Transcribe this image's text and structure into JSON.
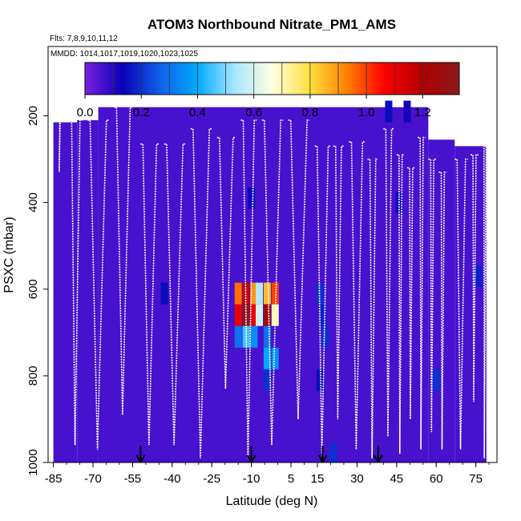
{
  "chart_data": {
    "type": "heatmap",
    "title": "ATOM3 Northbound Nitrate_PM1_AMS",
    "flights_note": "Flts: 7,8,9,10,11,12",
    "dates_note": "MMDD: 1014,1017,1019,1020,1023,1025",
    "xlabel": "Latitude (deg N)",
    "ylabel": "PSXC (mbar)",
    "xlim": [
      -87,
      83
    ],
    "ylim": [
      1000,
      40
    ],
    "x_ticks": [
      "-85",
      "-70",
      "-55",
      "-40",
      "-25",
      "-10",
      "5",
      "15",
      "30",
      "45",
      "60",
      "75"
    ],
    "y_ticks": [
      "200",
      "400",
      "600",
      "800",
      "1000"
    ],
    "colorbar": {
      "range": [
        0,
        1.33
      ],
      "tick_labels": [
        "0.0",
        "0.2",
        "0.4",
        "0.6",
        "0.8",
        "1.0",
        "1.2"
      ],
      "stops": [
        "#7a1fe0",
        "#0a00b8",
        "#1060e8",
        "#00aaff",
        "#a8e6ff",
        "#ffffe0",
        "#ffe040",
        "#ff8000",
        "#ff0000",
        "#b00000",
        "#8b1a1a"
      ]
    },
    "background_value": 0.06,
    "cells": [
      {
        "lat": -15,
        "p": 610,
        "v": 0.95
      },
      {
        "lat": -12,
        "p": 610,
        "v": 1.15
      },
      {
        "lat": -9,
        "p": 610,
        "v": 0.9
      },
      {
        "lat": -7,
        "p": 610,
        "v": 0.55
      },
      {
        "lat": -4,
        "p": 610,
        "v": 0.85
      },
      {
        "lat": -1,
        "p": 610,
        "v": 1.0
      },
      {
        "lat": -15,
        "p": 660,
        "v": 1.1
      },
      {
        "lat": -12,
        "p": 660,
        "v": 1.3
      },
      {
        "lat": -9,
        "p": 660,
        "v": 1.1
      },
      {
        "lat": -7,
        "p": 660,
        "v": 0.6
      },
      {
        "lat": -4,
        "p": 660,
        "v": 1.25
      },
      {
        "lat": -1,
        "p": 660,
        "v": 0.7
      },
      {
        "lat": -15,
        "p": 710,
        "v": 0.3
      },
      {
        "lat": -12,
        "p": 710,
        "v": 0.45
      },
      {
        "lat": -9,
        "p": 710,
        "v": 0.35
      },
      {
        "lat": -4,
        "p": 710,
        "v": 0.3
      },
      {
        "lat": -4,
        "p": 760,
        "v": 0.4
      },
      {
        "lat": -1,
        "p": 760,
        "v": 0.35
      },
      {
        "lat": -4,
        "p": 810,
        "v": 0.2
      },
      {
        "lat": -43,
        "p": 610,
        "v": 0.15
      },
      {
        "lat": 16,
        "p": 610,
        "v": 0.2
      },
      {
        "lat": 17,
        "p": 660,
        "v": 0.18
      },
      {
        "lat": 18,
        "p": 710,
        "v": 0.2
      },
      {
        "lat": 16,
        "p": 810,
        "v": 0.15
      },
      {
        "lat": 21,
        "p": 980,
        "v": 0.2
      },
      {
        "lat": 42,
        "p": 190,
        "v": 0.15
      },
      {
        "lat": 49,
        "p": 190,
        "v": 0.12
      },
      {
        "lat": 46,
        "p": 400,
        "v": 0.14
      },
      {
        "lat": 60,
        "p": 810,
        "v": 0.2
      },
      {
        "lat": 76,
        "p": 570,
        "v": 0.18
      },
      {
        "lat": -10,
        "p": 390,
        "v": 0.14
      }
    ],
    "profiles": [
      {
        "lat_top": -83.5,
        "lat_bottom": -81.5,
        "p_top": 210,
        "p_bottom": 330,
        "v": 0.06
      },
      {
        "lat_top": -79,
        "lat_bottom": -74,
        "p_top": 210,
        "p_bottom": 960,
        "v": 0.06
      },
      {
        "lat_top": -72,
        "lat_bottom": -64,
        "p_top": 210,
        "p_bottom": 970,
        "v": 0.06
      },
      {
        "lat_top": -62,
        "lat_bottom": -55,
        "p_top": 180,
        "p_bottom": 890,
        "v": 0.06
      },
      {
        "lat_top": -52,
        "lat_bottom": -45,
        "p_top": 265,
        "p_bottom": 960,
        "v": 0.06
      },
      {
        "lat_top": -43,
        "lat_bottom": -35,
        "p_top": 265,
        "p_bottom": 960,
        "v": 0.06
      },
      {
        "lat_top": -33,
        "lat_bottom": -25,
        "p_top": 230,
        "p_bottom": 990,
        "v": 0.06
      },
      {
        "lat_top": -23,
        "lat_bottom": -16,
        "p_top": 250,
        "p_bottom": 830,
        "v": 0.06
      },
      {
        "lat_top": -14,
        "lat_bottom": -8,
        "p_top": 210,
        "p_bottom": 990,
        "v": 0.06
      },
      {
        "lat_top": -6,
        "lat_bottom": 2,
        "p_top": 210,
        "p_bottom": 960,
        "v": 0.06
      },
      {
        "lat_top": 4,
        "lat_bottom": 12,
        "p_top": 210,
        "p_bottom": 900,
        "v": 0.06
      },
      {
        "lat_top": 14,
        "lat_bottom": 20,
        "p_top": 270,
        "p_bottom": 980,
        "v": 0.06
      },
      {
        "lat_top": 21,
        "lat_bottom": 25,
        "p_top": 270,
        "p_bottom": 900,
        "v": 0.06
      },
      {
        "lat_top": 27,
        "lat_bottom": 33,
        "p_top": 260,
        "p_bottom": 970,
        "v": 0.06
      },
      {
        "lat_top": 34,
        "lat_bottom": 38,
        "p_top": 300,
        "p_bottom": 990,
        "v": 0.06
      },
      {
        "lat_top": 40,
        "lat_bottom": 44,
        "p_top": 230,
        "p_bottom": 940,
        "v": 0.06
      },
      {
        "lat_top": 45,
        "lat_bottom": 48,
        "p_top": 290,
        "p_bottom": 980,
        "v": 0.06
      },
      {
        "lat_top": 49,
        "lat_bottom": 52,
        "p_top": 320,
        "p_bottom": 900,
        "v": 0.06
      },
      {
        "lat_top": 53,
        "lat_bottom": 56,
        "p_top": 250,
        "p_bottom": 970,
        "v": 0.06
      },
      {
        "lat_top": 57,
        "lat_bottom": 60,
        "p_top": 300,
        "p_bottom": 930,
        "v": 0.06
      },
      {
        "lat_top": 61,
        "lat_bottom": 64,
        "p_top": 330,
        "p_bottom": 970,
        "v": 0.06
      },
      {
        "lat_top": 67,
        "lat_bottom": 72,
        "p_top": 300,
        "p_bottom": 970,
        "v": 0.06
      },
      {
        "lat_top": 73,
        "lat_bottom": 76,
        "p_top": 290,
        "p_bottom": 860,
        "v": 0.06
      },
      {
        "lat_top": 78,
        "lat_bottom": 79,
        "p_top": 270,
        "p_bottom": 990,
        "v": 0.06
      }
    ],
    "arrow_lats": [
      -52,
      -10,
      17,
      38
    ]
  }
}
